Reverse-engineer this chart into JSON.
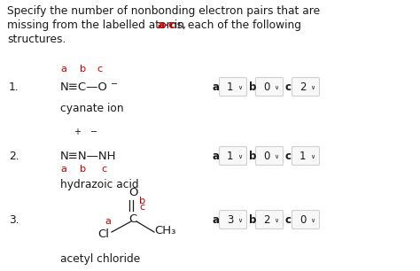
{
  "bg_color": "#ffffff",
  "text_color": "#1a1a1a",
  "red_color": "#cc0000",
  "title_l1": "Specify the number of nonbonding electron pairs that are",
  "title_l2_pre": "missing from the labelled atoms, ",
  "title_l2_red": "a-c",
  "title_l2_post": " in each of the following",
  "title_l3": "structures.",
  "items": [
    {
      "num": "1.",
      "abc_label": [
        "a",
        "b",
        "c"
      ],
      "formula": "N≡C—O",
      "formula_sup": "−",
      "charges": null,
      "abc_below": false,
      "name": "cyanate ion",
      "answers": [
        [
          "a",
          "1"
        ],
        [
          "b",
          "0"
        ],
        [
          "c",
          "2"
        ]
      ]
    },
    {
      "num": "2.",
      "abc_label": [
        "a",
        "b",
        "c"
      ],
      "formula": "N≡N—NH",
      "formula_sup": null,
      "charges": [
        "+",
        "−"
      ],
      "abc_below": true,
      "name": "hydrazoic acid",
      "answers": [
        [
          "a",
          "1"
        ],
        [
          "b",
          "0"
        ],
        [
          "c",
          "1"
        ]
      ]
    },
    {
      "num": "3.",
      "abc_label": [
        "a",
        "b",
        "c"
      ],
      "formula": null,
      "name": "acetyl chloride",
      "answers": [
        [
          "a",
          "3"
        ],
        [
          "b",
          "2"
        ],
        [
          "c",
          "0"
        ]
      ]
    }
  ],
  "box_color": "#d0d0d0",
  "box_fill": "#f8f8f8"
}
